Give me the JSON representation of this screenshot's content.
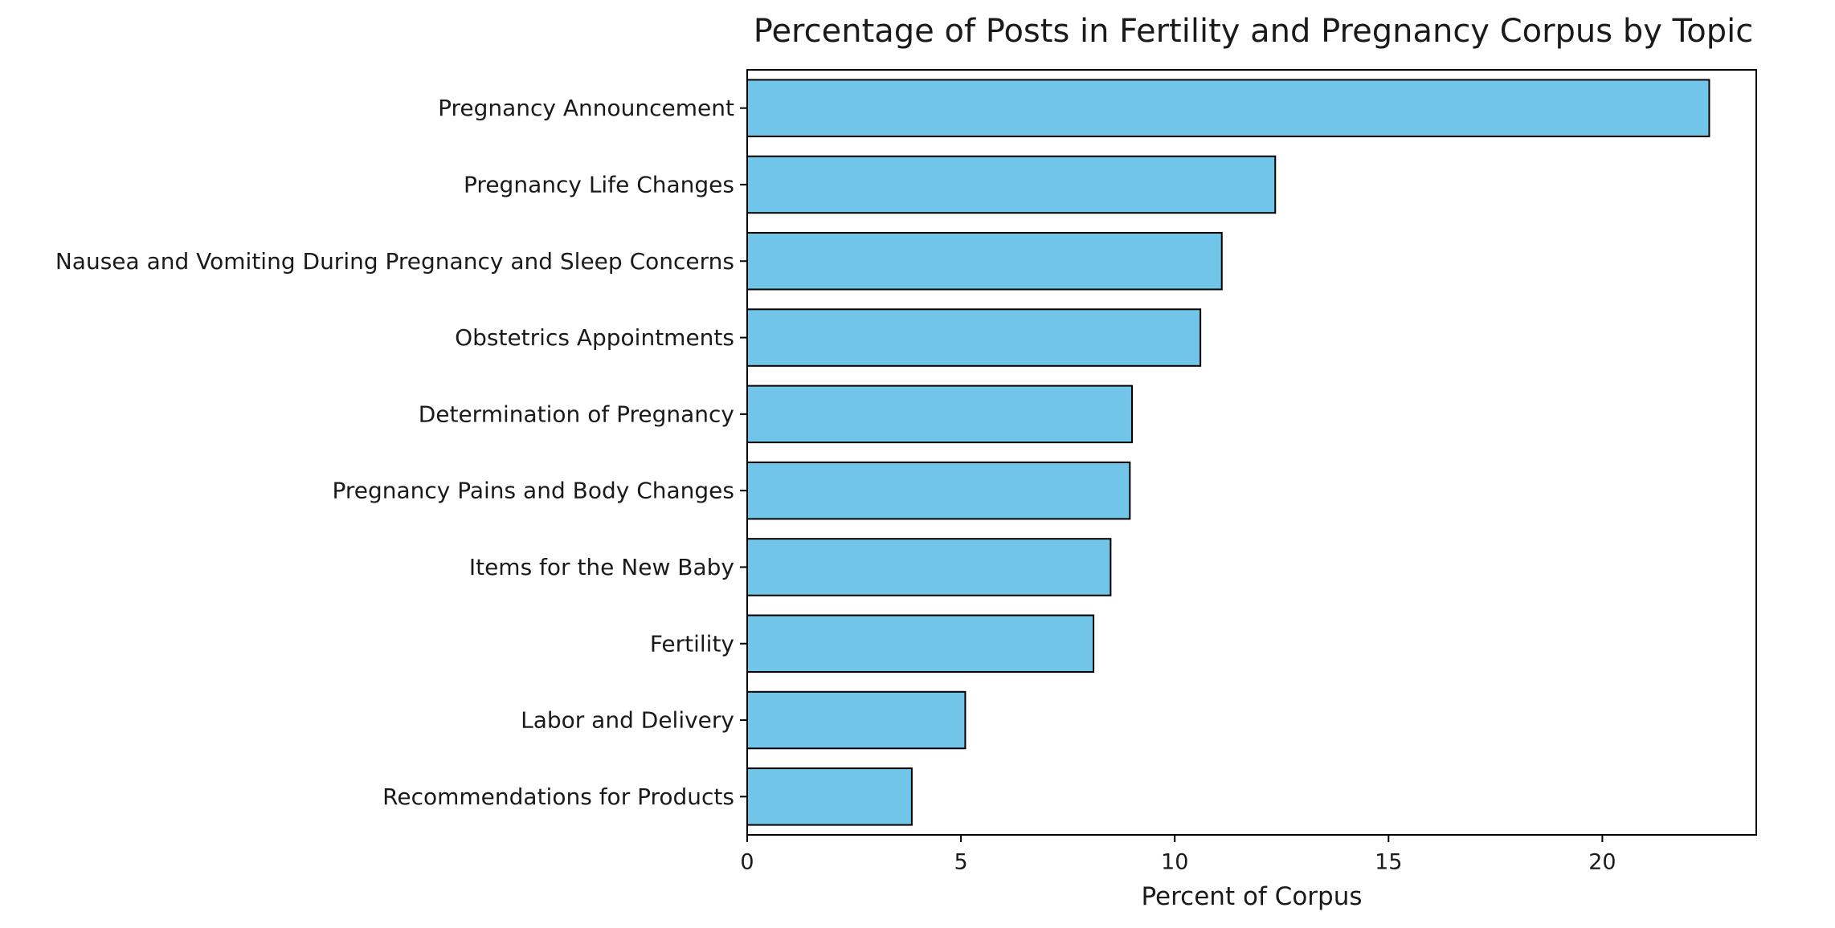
{
  "chart_data": {
    "type": "bar",
    "orientation": "horizontal",
    "title": "Percentage of Posts in Fertility and Pregnancy Corpus by Topic",
    "xlabel": "Percent of Corpus",
    "ylabel": "",
    "xlim": [
      0,
      23.6
    ],
    "xticks": [
      0,
      5,
      10,
      15,
      20
    ],
    "categories": [
      "Pregnancy Announcement",
      "Pregnancy Life Changes",
      "Nausea and Vomiting During Pregnancy and Sleep Concerns",
      "Obstetrics Appointments",
      "Determination of Pregnancy",
      "Pregnancy Pains and Body Changes",
      "Items for the New Baby",
      "Fertility",
      "Labor and Delivery",
      "Recommendations for Products"
    ],
    "values": [
      22.5,
      12.35,
      11.1,
      10.6,
      9.0,
      8.95,
      8.5,
      8.1,
      5.1,
      3.85
    ],
    "bar_color": "#70C5E8",
    "bar_edge_color": "#000000",
    "grid": false,
    "legend": "none"
  }
}
